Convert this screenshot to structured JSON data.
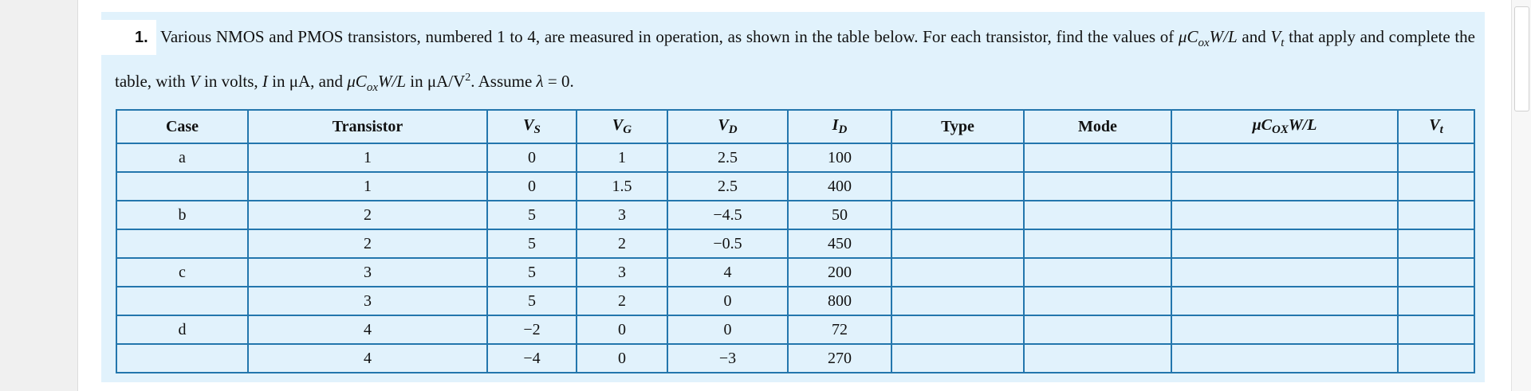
{
  "question": {
    "number": "1.",
    "runs": [
      "Various NMOS and PMOS transistors, numbered 1 to 4, are measured in operation, as shown in the table below. For each transistor, find the values of ",
      "μC",
      "ox",
      "W/L",
      " and ",
      "V",
      "t",
      " that apply and complete the table, with ",
      "V",
      " in volts, ",
      "I",
      " in μA, and ",
      "μC",
      "ox",
      "W/L",
      " in μA/V",
      "2",
      ". Assume ",
      "λ",
      " = 0."
    ]
  },
  "table": {
    "headers": [
      [
        "Case"
      ],
      [
        "Transistor"
      ],
      [
        "V",
        "S"
      ],
      [
        "V",
        "G"
      ],
      [
        "V",
        "D"
      ],
      [
        "I",
        "D"
      ],
      [
        "Type"
      ],
      [
        "Mode"
      ],
      [
        "μC",
        "OX",
        "W/L"
      ],
      [
        "V",
        "t"
      ]
    ],
    "rows": [
      [
        "a",
        "1",
        "0",
        "1",
        "2.5",
        "100"
      ],
      [
        null,
        "1",
        "0",
        "1.5",
        "2.5",
        "400"
      ],
      [
        "b",
        "2",
        "5",
        "3",
        "−4.5",
        "50"
      ],
      [
        null,
        "2",
        "5",
        "2",
        "−0.5",
        "450"
      ],
      [
        "c",
        "3",
        "5",
        "3",
        "4",
        "200"
      ],
      [
        null,
        "3",
        "5",
        "2",
        "0",
        "800"
      ],
      [
        "d",
        "4",
        "−2",
        "0",
        "0",
        "72"
      ],
      [
        null,
        "4",
        "−4",
        "0",
        "−3",
        "270"
      ]
    ]
  }
}
